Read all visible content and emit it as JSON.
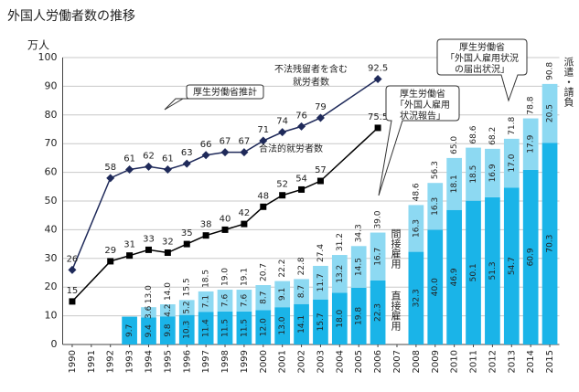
{
  "chart_data": {
    "type": "bar-line",
    "title": "外国人労働者数の推移",
    "y_label": "万人",
    "xlim": [
      1989.5,
      2015.5
    ],
    "xticks": [
      1990,
      1991,
      1992,
      1993,
      1994,
      1995,
      1996,
      1997,
      1998,
      1999,
      2000,
      2001,
      2002,
      2003,
      2004,
      2005,
      2006,
      2007,
      2008,
      2009,
      2010,
      2011,
      2012,
      2013,
      2014,
      2015
    ],
    "ylim": [
      0,
      100
    ],
    "yticks": [
      0,
      10,
      20,
      30,
      40,
      50,
      60,
      70,
      80,
      90,
      100
    ],
    "grid": true,
    "series": [
      {
        "kind": "line",
        "marker": "diamond",
        "color": "#1f2a5a",
        "x": [
          1990,
          1992,
          1993,
          1994,
          1995,
          1996,
          1997,
          1998,
          1999,
          2000,
          2001,
          2002,
          2003,
          2006
        ],
        "values": [
          26,
          58,
          61,
          62,
          61,
          63,
          66,
          67,
          67,
          71,
          74,
          76,
          79,
          92.5
        ]
      },
      {
        "kind": "line",
        "marker": "square",
        "color": "#000000",
        "x": [
          1990,
          1992,
          1993,
          1994,
          1995,
          1996,
          1997,
          1998,
          1999,
          2000,
          2001,
          2002,
          2003,
          2006
        ],
        "values": [
          15,
          29,
          31,
          33,
          32,
          35,
          38,
          40,
          42,
          48,
          52,
          54,
          57,
          75.5
        ]
      },
      {
        "kind": "bar",
        "color": "#1ab4e8",
        "x": [
          1993,
          1994,
          1995,
          1996,
          1997,
          1998,
          1999,
          2000,
          2001,
          2002,
          2003,
          2004,
          2005,
          2006,
          2007,
          2008,
          2009,
          2010,
          2011,
          2012,
          2013,
          2014,
          2015
        ],
        "values": [
          9.7,
          9.4,
          9.8,
          10.3,
          11.4,
          11.5,
          11.5,
          12.0,
          13.0,
          14.1,
          15.7,
          18.0,
          19.8,
          22.3,
          null,
          32.3,
          40.0,
          46.9,
          50.1,
          51.3,
          54.7,
          60.9,
          70.3
        ],
        "value_labels": [
          "9.7",
          "9.4",
          "9.8",
          "10.3",
          "11.4",
          "11.5",
          "11.5",
          "12.0",
          "13.0",
          "14.1",
          "15.7",
          "18.0",
          "19.8",
          "22.3",
          null,
          "32.3",
          "40.0",
          "46.9",
          "50.1",
          "51.3",
          "54.7",
          "60.9",
          "70.3"
        ]
      },
      {
        "kind": "bar",
        "color": "#8dd9f2",
        "x": [
          1993,
          1994,
          1995,
          1996,
          1997,
          1998,
          1999,
          2000,
          2001,
          2002,
          2003,
          2004,
          2005,
          2006,
          2007,
          2008,
          2009,
          2010,
          2011,
          2012,
          2013,
          2014,
          2015
        ],
        "values": [
          null,
          3.6,
          4.2,
          5.2,
          7.1,
          7.6,
          7.6,
          8.7,
          9.1,
          8.7,
          11.7,
          13.2,
          14.5,
          16.7,
          null,
          16.3,
          16.3,
          18.1,
          18.5,
          16.9,
          17.0,
          17.9,
          20.5
        ],
        "value_labels": [
          null,
          "3.6",
          "4.2",
          "5.2",
          "7.1",
          "7.6",
          "7.6",
          "8.7",
          "9.1",
          "8.7",
          "11.7",
          "13.2",
          "14.5",
          "16.7",
          null,
          "16.3",
          "16.3",
          "18.1",
          "18.5",
          "16.9",
          "17.0",
          "17.9",
          "20.5"
        ]
      }
    ],
    "totals": {
      "x": [
        1994,
        1995,
        1996,
        1997,
        1998,
        1999,
        2000,
        2001,
        2002,
        2003,
        2004,
        2005,
        2006,
        2008,
        2009,
        2010,
        2011,
        2012,
        2013,
        2014,
        2015
      ],
      "values": [
        13.0,
        14.0,
        15.5,
        18.5,
        19.0,
        19.1,
        20.7,
        22.2,
        22.8,
        27.4,
        31.2,
        34.3,
        39.0,
        48.6,
        56.3,
        65.0,
        68.6,
        68.2,
        71.8,
        78.8,
        90.8
      ],
      "value_labels": [
        "13.0",
        "14.0",
        "15.5",
        "18.5",
        "19.0",
        "19.1",
        "20.7",
        "22.2",
        "22.8",
        "27.4",
        "31.2",
        "34.3",
        "39.0",
        "48.6",
        "56.3",
        "65.0",
        "68.6",
        "68.2",
        "71.8",
        "78.8",
        "90.8"
      ]
    },
    "annotations": [
      {
        "lines": [
          "不法残留者を含む",
          "就労者数"
        ]
      },
      {
        "lines": [
          "合法的就労者数"
        ]
      },
      {
        "lines": [
          "厚生労働省推計"
        ]
      },
      {
        "lines": [
          "厚生労働省",
          "「外国人雇用",
          "状況報告」"
        ]
      },
      {
        "lines": [
          "厚生労働省",
          "「外国人雇用状況",
          "の届出状況」"
        ]
      },
      {
        "lines": [
          "間接雇用"
        ]
      },
      {
        "lines": [
          "直接雇用"
        ]
      },
      {
        "lines": [
          "派遣・請負"
        ]
      }
    ]
  }
}
